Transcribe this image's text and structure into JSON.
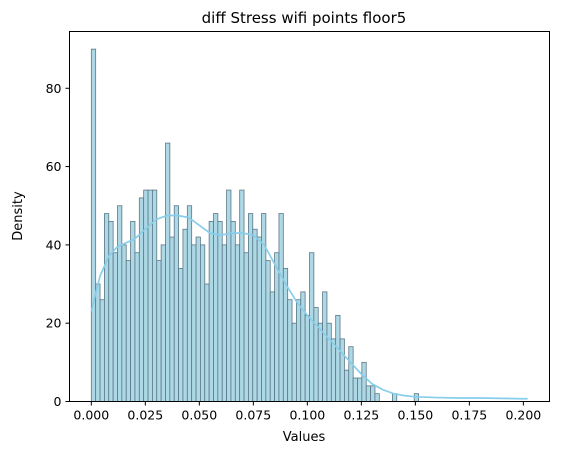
{
  "chart_data": {
    "type": "bar",
    "title": "diff Stress wifi points floor5",
    "xlabel": "Values",
    "ylabel": "Density",
    "xlim": [
      -0.0101,
      0.2121
    ],
    "ylim": [
      0,
      94.5
    ],
    "xticks": [
      0.0,
      0.025,
      0.05,
      0.075,
      0.1,
      0.125,
      0.15,
      0.175,
      0.2
    ],
    "xtick_labels": [
      "0.000",
      "0.025",
      "0.050",
      "0.075",
      "0.100",
      "0.125",
      "0.150",
      "0.175",
      "0.200"
    ],
    "yticks": [
      0,
      20,
      40,
      60,
      80
    ],
    "ytick_labels": [
      "0",
      "20",
      "40",
      "60",
      "80"
    ],
    "bin_start": 0.0,
    "bin_width": 0.00202,
    "values": [
      90,
      30,
      26,
      48,
      46,
      38,
      50,
      40,
      36,
      46,
      38,
      52,
      54,
      54,
      54,
      36,
      40,
      66,
      42,
      50,
      34,
      44,
      50,
      40,
      42,
      40,
      30,
      46,
      48,
      46,
      40,
      54,
      46,
      40,
      54,
      38,
      48,
      44,
      42,
      48,
      36,
      28,
      38,
      48,
      34,
      26,
      20,
      26,
      28,
      22,
      38,
      24,
      20,
      28,
      20,
      16,
      22,
      16,
      8,
      14,
      6,
      6,
      10,
      4,
      4,
      2,
      0,
      0,
      0,
      2,
      0,
      0,
      0,
      0,
      2,
      0,
      0,
      0,
      0,
      0,
      0,
      0,
      0,
      0,
      0,
      0,
      0,
      0,
      0,
      0,
      0,
      0,
      0,
      0,
      0,
      0,
      0,
      0,
      0,
      0
    ],
    "kde": {
      "x": [
        0.0,
        0.004,
        0.008,
        0.012,
        0.016,
        0.02,
        0.025,
        0.03,
        0.035,
        0.04,
        0.045,
        0.05,
        0.055,
        0.06,
        0.065,
        0.07,
        0.075,
        0.08,
        0.085,
        0.09,
        0.095,
        0.1,
        0.105,
        0.11,
        0.115,
        0.12,
        0.125,
        0.13,
        0.135,
        0.14,
        0.145,
        0.15,
        0.16,
        0.17,
        0.18,
        0.19,
        0.2,
        0.202
      ],
      "y": [
        23,
        32,
        37,
        39.5,
        40.5,
        41.5,
        44,
        46.5,
        47.5,
        47.5,
        47,
        45,
        43,
        42.5,
        43,
        43,
        42.5,
        40,
        35,
        30,
        25.5,
        22,
        19,
        16,
        13,
        10,
        7,
        4.5,
        3,
        2,
        1.5,
        1.2,
        1,
        0.9,
        0.9,
        0.8,
        0.7,
        0.7
      ]
    },
    "colors": {
      "bar_fill": "#add8e6",
      "bar_edge": "#5d7785",
      "kde_line": "#87ceeb"
    },
    "grid": false,
    "legend": "none"
  }
}
